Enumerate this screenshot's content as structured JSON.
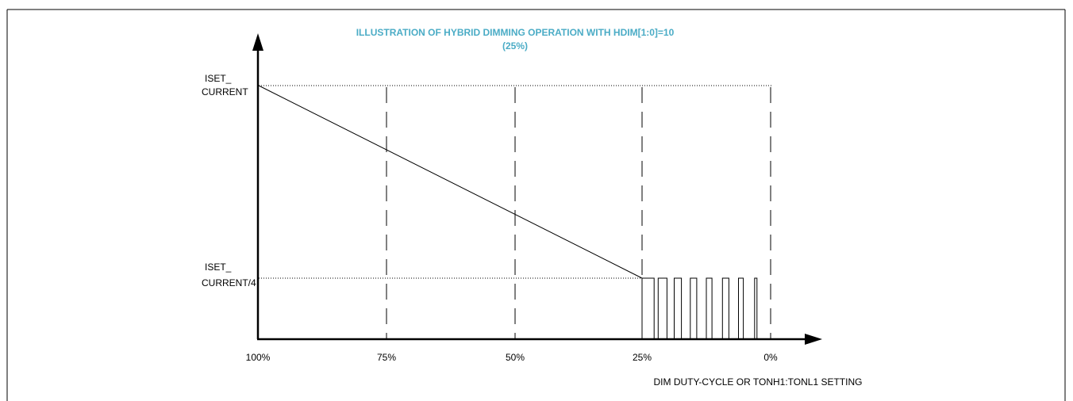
{
  "title": {
    "line1": "ILLUSTRATION OF HYBRID DIMMING OPERATION WITH HDIM[1:0]=10",
    "line2": "(25%)",
    "color": "#4bacc6"
  },
  "y_axis": {
    "levels": [
      {
        "line1": "ISET_",
        "line2": "CURRENT"
      },
      {
        "line1": "ISET_",
        "line2": "CURRENT/4"
      }
    ]
  },
  "x_axis": {
    "ticks": [
      "100%",
      "75%",
      "50%",
      "25%",
      "0%"
    ],
    "label": "DIM DUTY-CYCLE OR TONH1:TONL1 SETTING"
  },
  "chart_data": {
    "type": "line",
    "title": "ILLUSTRATION OF HYBRID DIMMING OPERATION WITH HDIM[1:0]=10 (25%)",
    "xlabel": "DIM DUTY-CYCLE OR TONH1:TONL1 SETTING",
    "ylabel": "",
    "categories": [
      "100%",
      "75%",
      "50%",
      "25%",
      "0%"
    ],
    "x_direction": "decreasing duty-cycle left to right",
    "y_levels": [
      "ISET_ CURRENT",
      "ISET_ CURRENT/4"
    ],
    "analog_segment": {
      "from": {
        "x": 100,
        "y": 1.0
      },
      "to": {
        "x": 25,
        "y": 0.25
      }
    },
    "pwm_segment": {
      "x_range": [
        25,
        0
      ],
      "amplitude": 0.25,
      "pulse_duty_cycles": [
        0.75,
        0.55,
        0.45,
        0.4,
        0.35,
        0.4,
        0.3,
        0.15
      ]
    },
    "grid": "dashed vertical lines at 75%, 50%, 25%, 0%; dotted horizontal lines at the two levels"
  }
}
